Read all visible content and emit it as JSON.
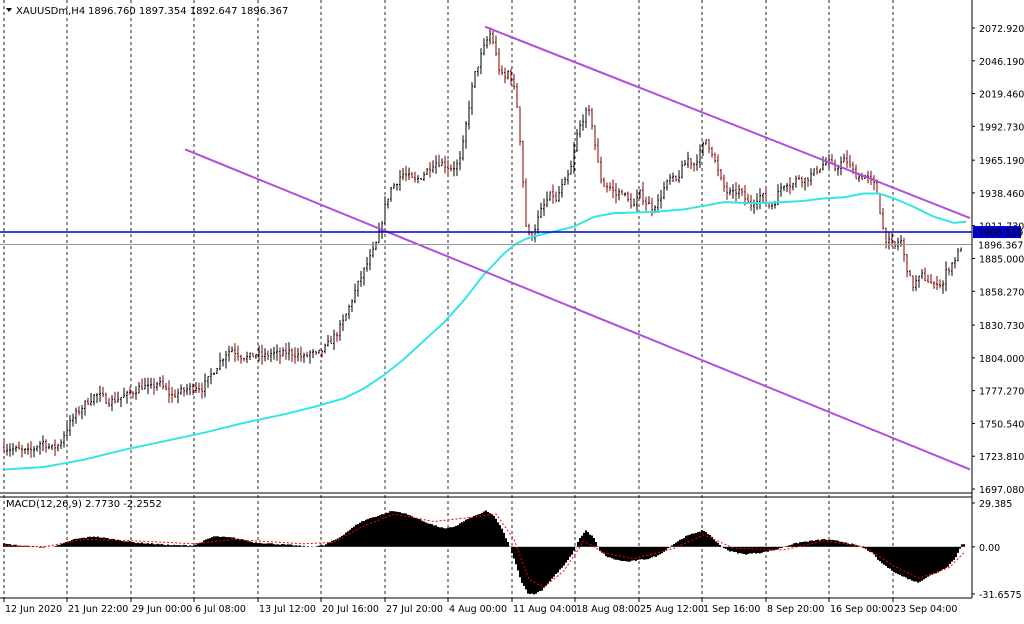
{
  "header": {
    "symbol": "XAUUSDm,H4",
    "ohlc": "1896.760 1897.354 1892.647 1896.367"
  },
  "macd_header": {
    "label": "MACD(12,26,9) 2.7730 -2.2552"
  },
  "colors": {
    "bull_wick": "#000000",
    "bear_wick": "#800000",
    "ma": "#33e6e6",
    "channel": "#b04fd8",
    "hline": "#0000cc",
    "bid_line": "#999999",
    "hist": "#000000",
    "signal": "#ff0000"
  },
  "chart_data": [
    {
      "type": "candlestick",
      "title": "",
      "series": [
        {
          "name": "",
          "values": []
        }
      ],
      "x_ticks": [
        "12 Jun 2020",
        "21 Jun 22:00",
        "29 Jun 00:00",
        "6 Jul 08:00",
        "13 Jul 12:00",
        "20 Jul 16:00",
        "27 Jul 20:00",
        "4 Aug 00:00",
        "11 Aug 04:00",
        "18 Aug 08:00",
        "25 Aug 12:00",
        "1 Sep 16:00",
        "8 Sep 20:00",
        "16 Sep 00:00",
        "23 Sep 04:00"
      ],
      "y_ticks": [
        "2072.920",
        "2046.190",
        "2019.460",
        "1992.730",
        "1965.190",
        "1938.460",
        "1911.730",
        "1885.000",
        "1858.270",
        "1830.730",
        "1804.000",
        "1777.270",
        "1750.540",
        "1723.810",
        "1697.080"
      ],
      "ylim": [
        1697.08,
        2072.92
      ],
      "price_path": [
        [
          0,
          1731
        ],
        [
          12,
          1729
        ],
        [
          25,
          1727
        ],
        [
          38,
          1736
        ],
        [
          47,
          1730
        ],
        [
          55,
          1733
        ],
        [
          62,
          1745
        ],
        [
          69,
          1755
        ],
        [
          76,
          1762
        ],
        [
          84,
          1769
        ],
        [
          92,
          1774
        ],
        [
          98,
          1772
        ],
        [
          106,
          1768
        ],
        [
          114,
          1771
        ],
        [
          122,
          1773
        ],
        [
          130,
          1777
        ],
        [
          138,
          1781
        ],
        [
          146,
          1779
        ],
        [
          154,
          1784
        ],
        [
          160,
          1779
        ],
        [
          168,
          1773
        ],
        [
          176,
          1776
        ],
        [
          184,
          1779
        ],
        [
          192,
          1781
        ],
        [
          198,
          1779
        ],
        [
          204,
          1786
        ],
        [
          210,
          1794
        ],
        [
          216,
          1801
        ],
        [
          222,
          1808
        ],
        [
          228,
          1811
        ],
        [
          236,
          1806
        ],
        [
          244,
          1804
        ],
        [
          252,
          1807
        ],
        [
          260,
          1805
        ],
        [
          268,
          1808
        ],
        [
          276,
          1806
        ],
        [
          284,
          1809
        ],
        [
          292,
          1807
        ],
        [
          300,
          1804
        ],
        [
          306,
          1808
        ],
        [
          312,
          1806
        ],
        [
          320,
          1811
        ],
        [
          326,
          1817
        ],
        [
          332,
          1823
        ],
        [
          338,
          1831
        ],
        [
          344,
          1843
        ],
        [
          350,
          1856
        ],
        [
          356,
          1868
        ],
        [
          362,
          1879
        ],
        [
          368,
          1888
        ],
        [
          374,
          1901
        ],
        [
          380,
          1924
        ],
        [
          386,
          1941
        ],
        [
          392,
          1947
        ],
        [
          398,
          1954
        ],
        [
          404,
          1952
        ],
        [
          410,
          1948
        ],
        [
          416,
          1951
        ],
        [
          422,
          1956
        ],
        [
          428,
          1962
        ],
        [
          434,
          1964
        ],
        [
          440,
          1962
        ],
        [
          446,
          1959
        ],
        [
          452,
          1960
        ],
        [
          456,
          1965
        ],
        [
          460,
          1982
        ],
        [
          464,
          2005
        ],
        [
          470,
          2033
        ],
        [
          476,
          2048
        ],
        [
          482,
          2061
        ],
        [
          486,
          2068
        ],
        [
          490,
          2060
        ],
        [
          494,
          2042
        ],
        [
          500,
          2030
        ],
        [
          504,
          2037
        ],
        [
          508,
          2032
        ],
        [
          514,
          2005
        ],
        [
          518,
          1960
        ],
        [
          522,
          1912
        ],
        [
          526,
          1901
        ],
        [
          530,
          1908
        ],
        [
          536,
          1922
        ],
        [
          542,
          1931
        ],
        [
          548,
          1939
        ],
        [
          552,
          1931
        ],
        [
          556,
          1941
        ],
        [
          562,
          1948
        ],
        [
          568,
          1961
        ],
        [
          572,
          1983
        ],
        [
          578,
          1998
        ],
        [
          584,
          2006
        ],
        [
          588,
          1995
        ],
        [
          592,
          1972
        ],
        [
          596,
          1952
        ],
        [
          600,
          1945
        ],
        [
          606,
          1943
        ],
        [
          612,
          1937
        ],
        [
          618,
          1940
        ],
        [
          624,
          1932
        ],
        [
          630,
          1928
        ],
        [
          636,
          1938
        ],
        [
          642,
          1931
        ],
        [
          648,
          1927
        ],
        [
          654,
          1931
        ],
        [
          660,
          1942
        ],
        [
          666,
          1950
        ],
        [
          672,
          1948
        ],
        [
          678,
          1958
        ],
        [
          684,
          1966
        ],
        [
          690,
          1962
        ],
        [
          696,
          1971
        ],
        [
          702,
          1982
        ],
        [
          708,
          1972
        ],
        [
          712,
          1961
        ],
        [
          716,
          1950
        ],
        [
          722,
          1940
        ],
        [
          728,
          1937
        ],
        [
          734,
          1941
        ],
        [
          740,
          1935
        ],
        [
          746,
          1928
        ],
        [
          752,
          1934
        ],
        [
          758,
          1937
        ],
        [
          764,
          1928
        ],
        [
          770,
          1930
        ],
        [
          776,
          1942
        ],
        [
          782,
          1948
        ],
        [
          788,
          1944
        ],
        [
          794,
          1952
        ],
        [
          800,
          1949
        ],
        [
          806,
          1952
        ],
        [
          812,
          1957
        ],
        [
          818,
          1961
        ],
        [
          824,
          1964
        ],
        [
          830,
          1958
        ],
        [
          836,
          1962
        ],
        [
          842,
          1966
        ],
        [
          848,
          1957
        ],
        [
          854,
          1951
        ],
        [
          860,
          1953
        ],
        [
          866,
          1949
        ],
        [
          870,
          1945
        ],
        [
          874,
          1936
        ],
        [
          878,
          1912
        ],
        [
          882,
          1901
        ],
        [
          886,
          1897
        ],
        [
          892,
          1894
        ],
        [
          896,
          1903
        ],
        [
          900,
          1887
        ],
        [
          904,
          1874
        ],
        [
          908,
          1862
        ],
        [
          912,
          1866
        ],
        [
          918,
          1871
        ],
        [
          924,
          1867
        ],
        [
          930,
          1862
        ],
        [
          934,
          1868
        ],
        [
          938,
          1861
        ],
        [
          942,
          1874
        ],
        [
          948,
          1881
        ],
        [
          954,
          1889
        ],
        [
          958,
          1896
        ]
      ],
      "ma_path": [
        [
          0,
          1713
        ],
        [
          40,
          1715
        ],
        [
          80,
          1721
        ],
        [
          120,
          1729
        ],
        [
          160,
          1736
        ],
        [
          200,
          1743
        ],
        [
          240,
          1751
        ],
        [
          280,
          1758
        ],
        [
          310,
          1764
        ],
        [
          340,
          1771
        ],
        [
          360,
          1779
        ],
        [
          380,
          1790
        ],
        [
          400,
          1803
        ],
        [
          420,
          1818
        ],
        [
          440,
          1833
        ],
        [
          460,
          1851
        ],
        [
          480,
          1872
        ],
        [
          500,
          1889
        ],
        [
          512,
          1897
        ],
        [
          522,
          1901
        ],
        [
          530,
          1903
        ],
        [
          550,
          1907
        ],
        [
          570,
          1911
        ],
        [
          590,
          1919
        ],
        [
          610,
          1922
        ],
        [
          650,
          1923
        ],
        [
          680,
          1925
        ],
        [
          700,
          1928
        ],
        [
          720,
          1931
        ],
        [
          750,
          1930
        ],
        [
          780,
          1931
        ],
        [
          800,
          1932
        ],
        [
          820,
          1934
        ],
        [
          840,
          1935
        ],
        [
          860,
          1938
        ],
        [
          875,
          1938
        ],
        [
          890,
          1934
        ],
        [
          910,
          1927
        ],
        [
          930,
          1919
        ],
        [
          950,
          1914
        ],
        [
          962,
          1915
        ]
      ],
      "channel_upper": [
        [
          485,
          2074
        ],
        [
          970,
          1918
        ]
      ],
      "channel_lower": [
        [
          185,
          1974
        ],
        [
          970,
          1713
        ]
      ],
      "hline": {
        "label": "1906.559",
        "value": 1906.559
      },
      "bid_line": {
        "label": "1896.367",
        "value": 1896.367
      }
    },
    {
      "type": "bar",
      "title": "",
      "y_ticks": [
        "29.385",
        "0.00",
        "-31.6575"
      ],
      "ylim": [
        -31.6575,
        29.385
      ],
      "hist_path": [
        [
          0,
          2
        ],
        [
          20,
          0.5
        ],
        [
          40,
          -0.5
        ],
        [
          55,
          1
        ],
        [
          70,
          5
        ],
        [
          90,
          7
        ],
        [
          110,
          5
        ],
        [
          130,
          3
        ],
        [
          150,
          2
        ],
        [
          170,
          1
        ],
        [
          190,
          1
        ],
        [
          210,
          7
        ],
        [
          230,
          6
        ],
        [
          250,
          3
        ],
        [
          270,
          2
        ],
        [
          290,
          1
        ],
        [
          305,
          0
        ],
        [
          320,
          1
        ],
        [
          335,
          6
        ],
        [
          345,
          11
        ],
        [
          355,
          16
        ],
        [
          365,
          19
        ],
        [
          375,
          21
        ],
        [
          388,
          24
        ],
        [
          398,
          23
        ],
        [
          410,
          20
        ],
        [
          420,
          17
        ],
        [
          432,
          14
        ],
        [
          442,
          12
        ],
        [
          452,
          14
        ],
        [
          462,
          18
        ],
        [
          472,
          21
        ],
        [
          482,
          24
        ],
        [
          490,
          21
        ],
        [
          498,
          12
        ],
        [
          506,
          0
        ],
        [
          512,
          -12
        ],
        [
          518,
          -24
        ],
        [
          524,
          -31
        ],
        [
          530,
          -32
        ],
        [
          538,
          -29
        ],
        [
          546,
          -23
        ],
        [
          554,
          -17
        ],
        [
          562,
          -11
        ],
        [
          570,
          -3
        ],
        [
          576,
          6
        ],
        [
          582,
          11
        ],
        [
          590,
          6
        ],
        [
          596,
          -3
        ],
        [
          604,
          -7
        ],
        [
          614,
          -9
        ],
        [
          624,
          -10
        ],
        [
          634,
          -9
        ],
        [
          644,
          -8
        ],
        [
          654,
          -6
        ],
        [
          662,
          -2
        ],
        [
          672,
          3
        ],
        [
          682,
          7
        ],
        [
          690,
          9
        ],
        [
          698,
          11
        ],
        [
          706,
          8
        ],
        [
          716,
          1
        ],
        [
          726,
          -3
        ],
        [
          740,
          -5
        ],
        [
          756,
          -4
        ],
        [
          772,
          -2
        ],
        [
          784,
          1
        ],
        [
          796,
          3
        ],
        [
          808,
          4
        ],
        [
          820,
          5
        ],
        [
          832,
          4
        ],
        [
          842,
          3
        ],
        [
          852,
          1
        ],
        [
          860,
          -1
        ],
        [
          868,
          -4
        ],
        [
          876,
          -10
        ],
        [
          886,
          -15
        ],
        [
          896,
          -19
        ],
        [
          906,
          -22
        ],
        [
          914,
          -24
        ],
        [
          924,
          -20
        ],
        [
          934,
          -17
        ],
        [
          944,
          -13
        ],
        [
          952,
          -7
        ],
        [
          958,
          2
        ]
      ],
      "signal_path": [
        [
          0,
          1
        ],
        [
          40,
          0
        ],
        [
          80,
          5
        ],
        [
          130,
          4
        ],
        [
          190,
          2
        ],
        [
          230,
          5
        ],
        [
          300,
          2
        ],
        [
          330,
          3
        ],
        [
          360,
          14
        ],
        [
          390,
          22
        ],
        [
          430,
          17
        ],
        [
          470,
          20
        ],
        [
          492,
          22
        ],
        [
          510,
          5
        ],
        [
          525,
          -22
        ],
        [
          540,
          -27
        ],
        [
          560,
          -16
        ],
        [
          580,
          4
        ],
        [
          600,
          -4
        ],
        [
          630,
          -8
        ],
        [
          670,
          -1
        ],
        [
          700,
          8
        ],
        [
          730,
          -1
        ],
        [
          780,
          -2
        ],
        [
          820,
          4
        ],
        [
          860,
          0
        ],
        [
          890,
          -13
        ],
        [
          915,
          -21
        ],
        [
          945,
          -14
        ],
        [
          960,
          -4
        ]
      ]
    }
  ]
}
